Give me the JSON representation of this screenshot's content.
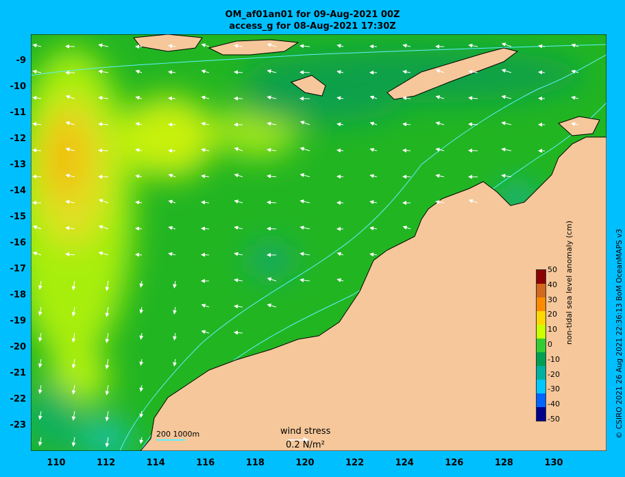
{
  "title_line1": "OM_af01an01 for 09-Aug-2021 00Z",
  "title_line2": "access_g for 08-Aug-2021 17:30Z",
  "y_ticks": [
    "-9",
    "-10",
    "-11",
    "-12",
    "-13",
    "-14",
    "-15",
    "-16",
    "-17",
    "-18",
    "-19",
    "-20",
    "-21",
    "-22",
    "-23"
  ],
  "x_ticks": [
    "110",
    "112",
    "114",
    "116",
    "118",
    "120",
    "122",
    "124",
    "126",
    "128",
    "130"
  ],
  "colorbar": {
    "title": "non-tidal sea level anomaly (cm)",
    "ticks": [
      "50",
      "40",
      "30",
      "20",
      "10",
      "0",
      "-10",
      "-20",
      "-30",
      "-40",
      "-50"
    ],
    "colors": [
      "#8b0000",
      "#d2691e",
      "#ff8c00",
      "#ffd700",
      "#ccff00",
      "#32cd32",
      "#00a050",
      "#00b0a0",
      "#00c8ff",
      "#0064ff",
      "#00008b"
    ]
  },
  "wind_stress": {
    "label": "wind stress",
    "value": "0.2 N/m²"
  },
  "depth_legend": "200  1000m",
  "credit": "© CSIRO 2021   26 Aug 2021 22:36:13 BoM OceanMAPS v3",
  "colors": {
    "background": "#00bfff",
    "land": "#f5c79a",
    "ocean_base": "#22b522",
    "contour": "#5ff0ff"
  }
}
